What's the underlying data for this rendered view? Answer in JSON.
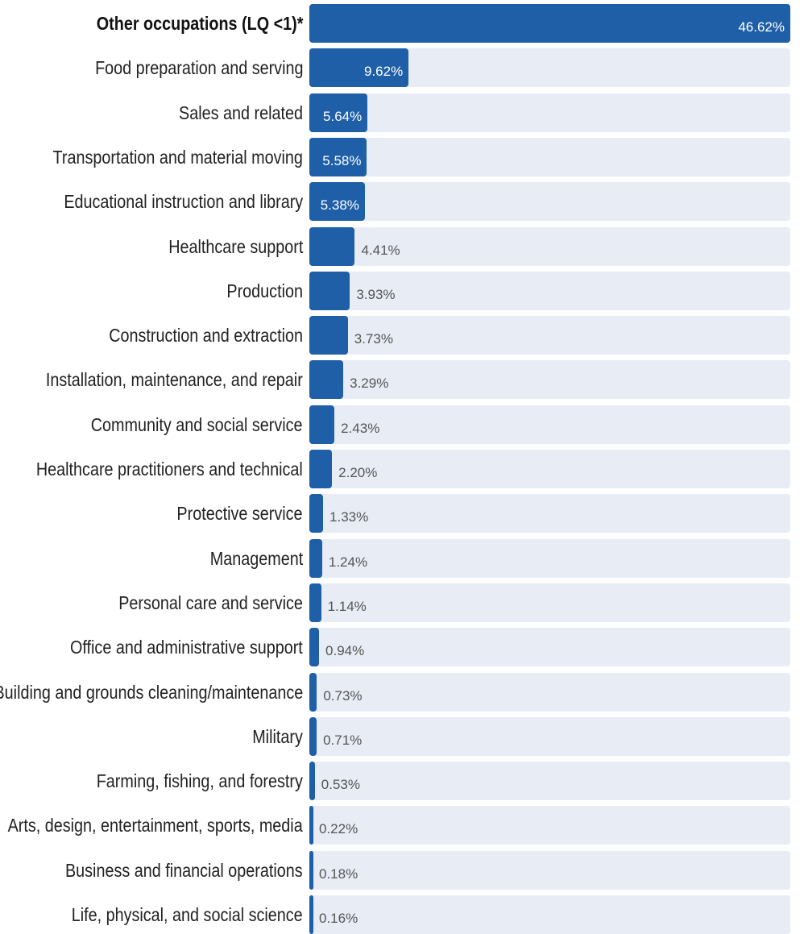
{
  "chart_data": {
    "type": "bar",
    "orientation": "horizontal",
    "categories": [
      "Other occupations (LQ <1)*",
      "Food preparation and serving",
      "Sales and related",
      "Transportation and material moving",
      "Educational instruction and library",
      "Healthcare support",
      "Production",
      "Construction and extraction",
      "Installation, maintenance, and repair",
      "Community and social service",
      "Healthcare practitioners and technical",
      "Protective service",
      "Management",
      "Personal care and service",
      "Office and administrative support",
      "Building and grounds cleaning/maintenance",
      "Military",
      "Farming, fishing, and forestry",
      "Arts, design, entertainment, sports, media",
      "Business and financial operations",
      "Life, physical, and social science"
    ],
    "values": [
      46.62,
      9.62,
      5.64,
      5.58,
      5.38,
      4.41,
      3.93,
      3.73,
      3.29,
      2.43,
      2.2,
      1.33,
      1.24,
      1.14,
      0.94,
      0.73,
      0.71,
      0.53,
      0.22,
      0.18,
      0.16
    ],
    "value_labels": [
      "46.62%",
      "9.62%",
      "5.64%",
      "5.58%",
      "5.38%",
      "4.41%",
      "3.93%",
      "3.73%",
      "3.29%",
      "2.43%",
      "2.20%",
      "1.33%",
      "1.24%",
      "1.14%",
      "0.94%",
      "0.73%",
      "0.71%",
      "0.53%",
      "0.22%",
      "0.18%",
      "0.16%"
    ],
    "bold_categories": [
      "Other occupations (LQ <1)*"
    ],
    "xlim": [
      0,
      46.62
    ],
    "grid": false,
    "legend": "none",
    "title": "",
    "xlabel": "",
    "ylabel": "",
    "colors": {
      "bar": "#1f5fa8",
      "track": "#e7ecf5",
      "label_inside": "#ffffff",
      "label_outside": "#555555"
    }
  }
}
